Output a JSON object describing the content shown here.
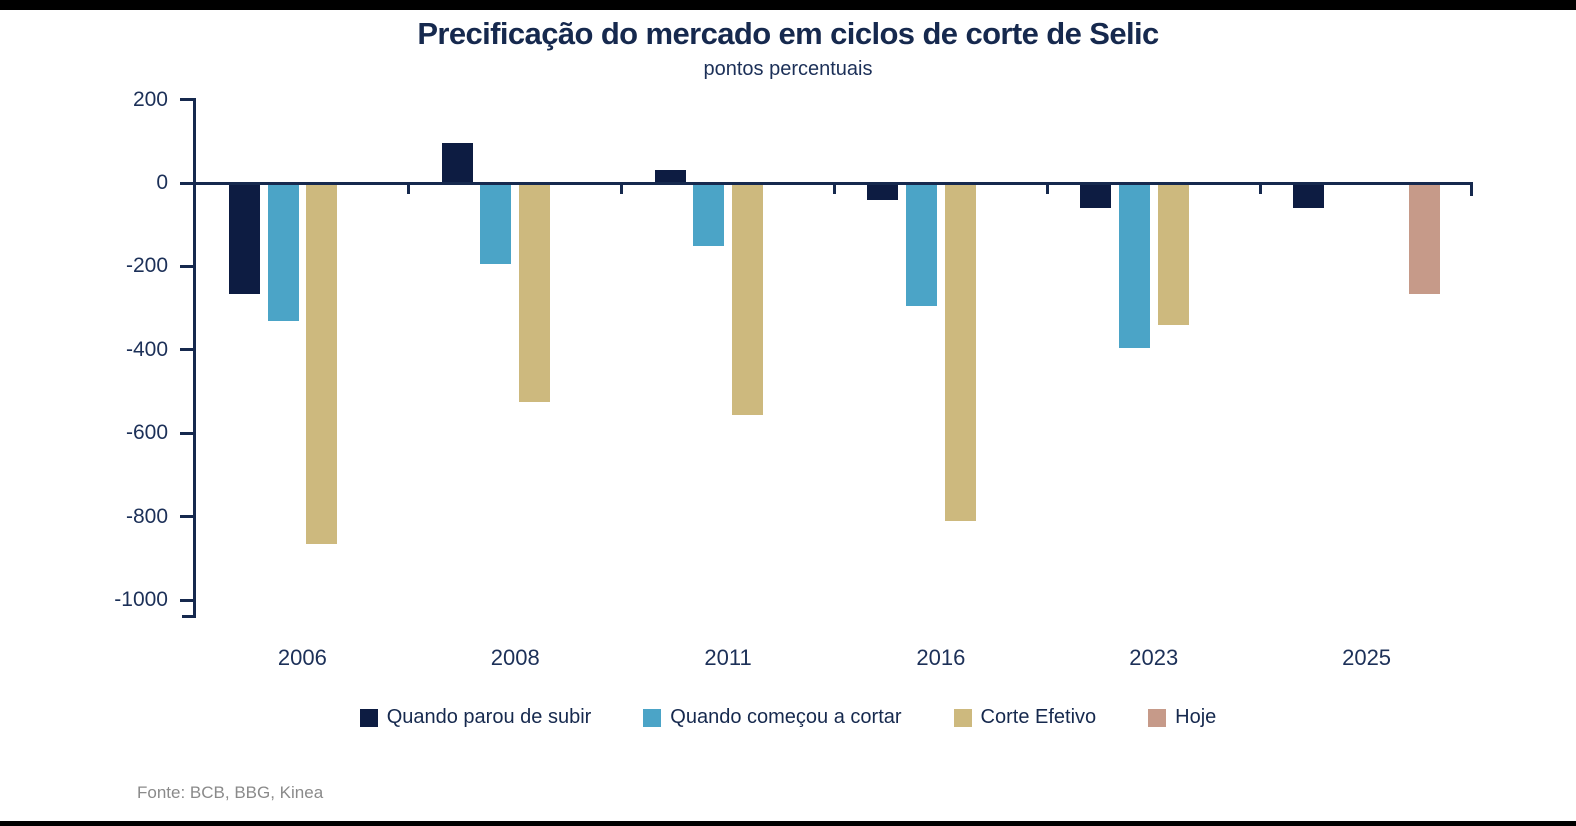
{
  "footer": {
    "source": "Fonte: BCB, BBG, Kinea"
  },
  "colors": {
    "background": "#ffffff",
    "frame_strips": "#000000",
    "axis": "#16294e",
    "title_text": "#16294e",
    "tick_label_text": "#1c3058",
    "legend_text": "#16294e",
    "source_text": "#8a8a8a",
    "navy": "#0d1c42",
    "light_blue": "#4ba4c7",
    "tan": "#cdb97e",
    "salmon": "#c69a89"
  },
  "chart_data": {
    "type": "bar",
    "title": "Precificação do mercado em ciclos de corte de Selic",
    "subtitle": "pontos percentuais",
    "xlabel": "",
    "ylabel": "",
    "ylim": [
      -1000,
      200
    ],
    "yticks": [
      200,
      0,
      -200,
      -400,
      -600,
      -800,
      -1000
    ],
    "grid": false,
    "legend_position": "bottom",
    "categories": [
      "2006",
      "2008",
      "2011",
      "2016",
      "2023",
      "2025"
    ],
    "series": [
      {
        "key": "quando-parou-de-subir",
        "name": "Quando parou de subir",
        "color": "#0d1c42",
        "values": [
          -265,
          95,
          30,
          -40,
          -60,
          -60
        ]
      },
      {
        "key": "quando-comecou-a-cortar",
        "name": "Quando começou a cortar",
        "color": "#4ba4c7",
        "values": [
          -330,
          -195,
          -150,
          -295,
          -395,
          null
        ]
      },
      {
        "key": "corte-efetivo",
        "name": "Corte Efetivo",
        "color": "#cdb97e",
        "values": [
          -865,
          -525,
          -555,
          -810,
          -340,
          null
        ]
      },
      {
        "key": "hoje",
        "name": "Hoje",
        "color": "#c69a89",
        "values": [
          null,
          null,
          null,
          null,
          null,
          -265
        ]
      }
    ]
  }
}
